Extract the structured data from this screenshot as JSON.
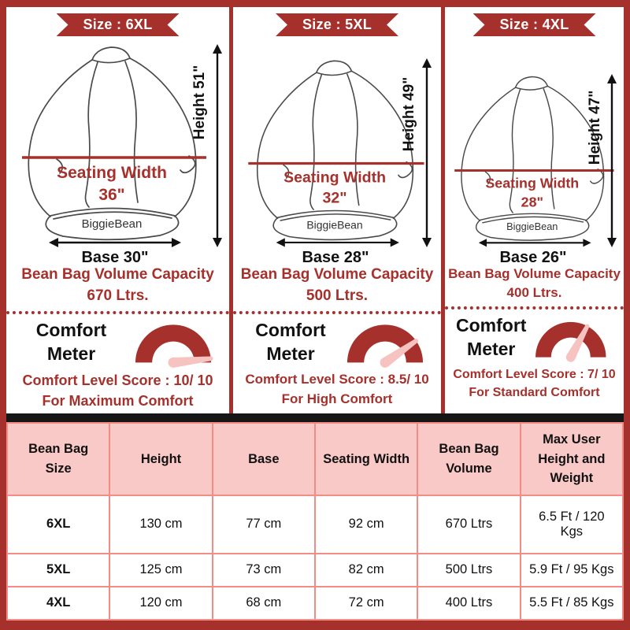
{
  "colors": {
    "brand_red": "#A6302B",
    "pink_light": "#F9C9C7",
    "salmon_border": "#F28C85",
    "needle_pink": "#F6C3C0",
    "sketch_gray": "#4a4a4a",
    "bar_black": "#161616"
  },
  "columns": [
    {
      "size_label": "Size : 6XL",
      "height_label": "Height 51\"",
      "seating_width_line1": "Seating Width",
      "seating_width_line2": "36\"",
      "brand": "BiggieBean",
      "base_label": "Base 30\"",
      "volume_line1": "Bean Bag Volume Capacity",
      "volume_line2": "670 Ltrs.",
      "comfort_line1": "Comfort",
      "comfort_line2": "Meter",
      "score_line1": "Comfort Level Score : 10/ 10",
      "score_line2": "For Maximum Comfort",
      "needle_angle": -6
    },
    {
      "size_label": "Size : 5XL",
      "height_label": "Height 49\"",
      "seating_width_line1": "Seating Width",
      "seating_width_line2": "32\"",
      "brand": "BiggieBean",
      "base_label": "Base 28\"",
      "volume_line1": "Bean Bag Volume Capacity",
      "volume_line2": "500 Ltrs.",
      "comfort_line1": "Comfort",
      "comfort_line2": "Meter",
      "score_line1": "Comfort Level Score : 8.5/ 10",
      "score_line2": "For High Comfort",
      "needle_angle": -35
    },
    {
      "size_label": "Size : 4XL",
      "height_label": "Height 47\"",
      "seating_width_line1": "Seating Width",
      "seating_width_line2": "28\"",
      "brand": "BiggieBean",
      "base_label": "Base 26\"",
      "volume_line1": "Bean Bag Volume Capacity",
      "volume_line2": "400 Ltrs.",
      "comfort_line1": "Comfort",
      "comfort_line2": "Meter",
      "score_line1": "Comfort Level Score : 7/ 10",
      "score_line2": "For Standard Comfort",
      "needle_angle": -62
    }
  ],
  "table": {
    "headers": [
      "Bean Bag Size",
      "Height",
      "Base",
      "Seating Width",
      "Bean Bag Volume",
      "Max User Height and Weight"
    ],
    "rows": [
      [
        "6XL",
        "130 cm",
        "77 cm",
        "92 cm",
        "670 Ltrs",
        "6.5 Ft / 120 Kgs"
      ],
      [
        "5XL",
        "125 cm",
        "73 cm",
        "82 cm",
        "500 Ltrs",
        "5.9 Ft / 95 Kgs"
      ],
      [
        "4XL",
        "120 cm",
        "68 cm",
        "72 cm",
        "400 Ltrs",
        "5.5 Ft / 85 Kgs"
      ]
    ]
  }
}
